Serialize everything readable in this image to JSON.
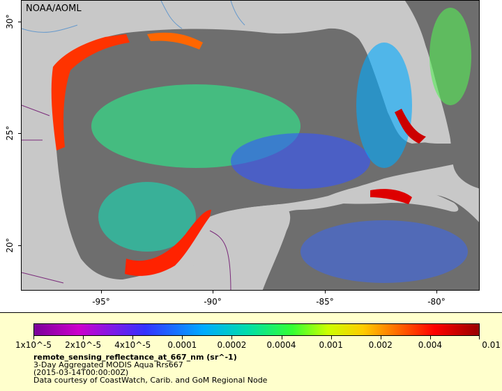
{
  "map": {
    "credit": "NOAA/AOML",
    "lat_labels": [
      "30°",
      "25°",
      "20°"
    ],
    "lon_labels": [
      "-95°",
      "-90°",
      "-85°",
      "-80°"
    ],
    "colors": {
      "land": "#c8c8c8",
      "nodata": "#6e6e6e",
      "border": "#7a2a7a",
      "river": "#6699cc"
    }
  },
  "legend": {
    "tick_labels": [
      "1x10^-5",
      "2x10^-5",
      "4x10^-5",
      "0.0001",
      "0.0002",
      "0.0004",
      "0.001",
      "0.002",
      "0.004",
      "0.01"
    ],
    "variable": "remote_sensing_reflectance_at_667_nm (sr^-1)",
    "description": "3-Day Aggregated MODIS Aqua Rrs667",
    "time": "(2015-03-14T00:00:00Z)",
    "data_credit": "Data courtesy of CoastWatch, Carib. and GoM Regional Node"
  }
}
